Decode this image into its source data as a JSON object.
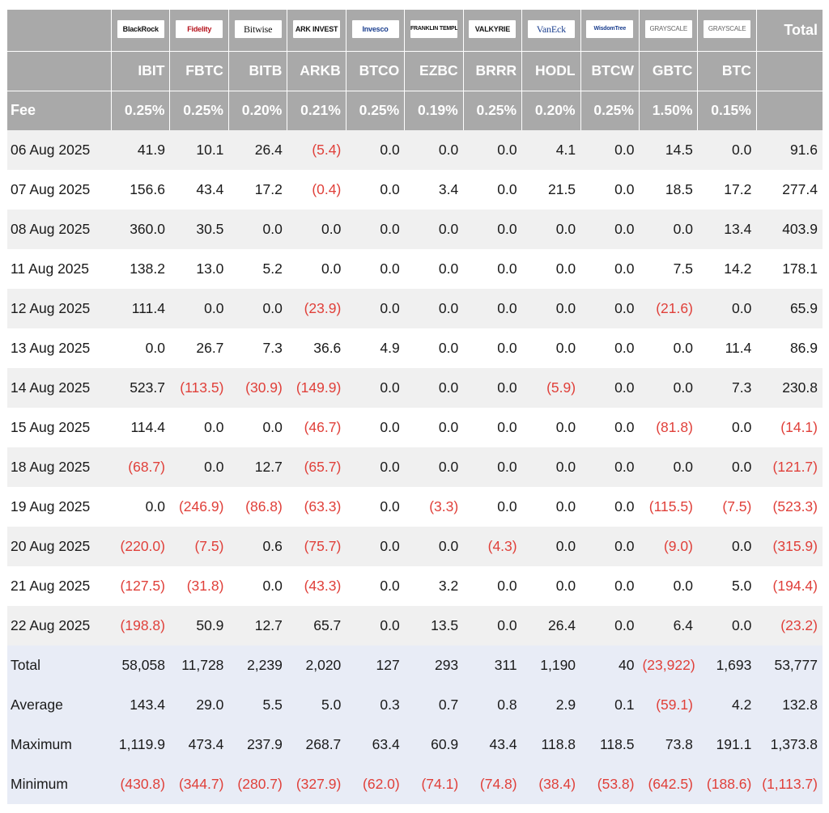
{
  "header": {
    "logos": [
      "BlackRock",
      "Fidelity",
      "Bitwise",
      "ARK INVEST",
      "Invesco",
      "FRANKLIN TEMPLETON",
      "VALKYRIE",
      "VanEck",
      "WisdomTree",
      "GRAYSCALE",
      "GRAYSCALE"
    ],
    "total_label": "Total",
    "tickers": [
      "IBIT",
      "FBTC",
      "BITB",
      "ARKB",
      "BTCO",
      "EZBC",
      "BRRR",
      "HODL",
      "BTCW",
      "GBTC",
      "BTC"
    ],
    "fee_label": "Fee",
    "fees": [
      "0.25%",
      "0.25%",
      "0.20%",
      "0.21%",
      "0.25%",
      "0.19%",
      "0.25%",
      "0.20%",
      "0.25%",
      "1.50%",
      "0.15%"
    ]
  },
  "rows": [
    {
      "date": "06 Aug 2025",
      "values": [
        "41.9",
        "10.1",
        "26.4",
        "(5.4)",
        "0.0",
        "0.0",
        "0.0",
        "4.1",
        "0.0",
        "14.5",
        "0.0",
        "91.6"
      ]
    },
    {
      "date": "07 Aug 2025",
      "values": [
        "156.6",
        "43.4",
        "17.2",
        "(0.4)",
        "0.0",
        "3.4",
        "0.0",
        "21.5",
        "0.0",
        "18.5",
        "17.2",
        "277.4"
      ]
    },
    {
      "date": "08 Aug 2025",
      "values": [
        "360.0",
        "30.5",
        "0.0",
        "0.0",
        "0.0",
        "0.0",
        "0.0",
        "0.0",
        "0.0",
        "0.0",
        "13.4",
        "403.9"
      ]
    },
    {
      "date": "11 Aug 2025",
      "values": [
        "138.2",
        "13.0",
        "5.2",
        "0.0",
        "0.0",
        "0.0",
        "0.0",
        "0.0",
        "0.0",
        "7.5",
        "14.2",
        "178.1"
      ]
    },
    {
      "date": "12 Aug 2025",
      "values": [
        "111.4",
        "0.0",
        "0.0",
        "(23.9)",
        "0.0",
        "0.0",
        "0.0",
        "0.0",
        "0.0",
        "(21.6)",
        "0.0",
        "65.9"
      ]
    },
    {
      "date": "13 Aug 2025",
      "values": [
        "0.0",
        "26.7",
        "7.3",
        "36.6",
        "4.9",
        "0.0",
        "0.0",
        "0.0",
        "0.0",
        "0.0",
        "11.4",
        "86.9"
      ]
    },
    {
      "date": "14 Aug 2025",
      "values": [
        "523.7",
        "(113.5)",
        "(30.9)",
        "(149.9)",
        "0.0",
        "0.0",
        "0.0",
        "(5.9)",
        "0.0",
        "0.0",
        "7.3",
        "230.8"
      ]
    },
    {
      "date": "15 Aug 2025",
      "values": [
        "114.4",
        "0.0",
        "0.0",
        "(46.7)",
        "0.0",
        "0.0",
        "0.0",
        "0.0",
        "0.0",
        "(81.8)",
        "0.0",
        "(14.1)"
      ]
    },
    {
      "date": "18 Aug 2025",
      "values": [
        "(68.7)",
        "0.0",
        "12.7",
        "(65.7)",
        "0.0",
        "0.0",
        "0.0",
        "0.0",
        "0.0",
        "0.0",
        "0.0",
        "(121.7)"
      ]
    },
    {
      "date": "19 Aug 2025",
      "values": [
        "0.0",
        "(246.9)",
        "(86.8)",
        "(63.3)",
        "0.0",
        "(3.3)",
        "0.0",
        "0.0",
        "0.0",
        "(115.5)",
        "(7.5)",
        "(523.3)"
      ]
    },
    {
      "date": "20 Aug 2025",
      "values": [
        "(220.0)",
        "(7.5)",
        "0.6",
        "(75.7)",
        "0.0",
        "0.0",
        "(4.3)",
        "0.0",
        "0.0",
        "(9.0)",
        "0.0",
        "(315.9)"
      ]
    },
    {
      "date": "21 Aug 2025",
      "values": [
        "(127.5)",
        "(31.8)",
        "0.0",
        "(43.3)",
        "0.0",
        "3.2",
        "0.0",
        "0.0",
        "0.0",
        "0.0",
        "5.0",
        "(194.4)"
      ]
    },
    {
      "date": "22 Aug 2025",
      "values": [
        "(198.8)",
        "50.9",
        "12.7",
        "65.7",
        "0.0",
        "13.5",
        "0.0",
        "26.4",
        "0.0",
        "6.4",
        "0.0",
        "(23.2)"
      ]
    }
  ],
  "summary": [
    {
      "label": "Total",
      "values": [
        "58,058",
        "11,728",
        "2,239",
        "2,020",
        "127",
        "293",
        "311",
        "1,190",
        "40",
        "(23,922)",
        "1,693",
        "53,777"
      ]
    },
    {
      "label": "Average",
      "values": [
        "143.4",
        "29.0",
        "5.5",
        "5.0",
        "0.3",
        "0.7",
        "0.8",
        "2.9",
        "0.1",
        "(59.1)",
        "4.2",
        "132.8"
      ]
    },
    {
      "label": "Maximum",
      "values": [
        "1,119.9",
        "473.4",
        "237.9",
        "268.7",
        "63.4",
        "60.9",
        "43.4",
        "118.8",
        "118.5",
        "73.8",
        "191.1",
        "1,373.8"
      ]
    },
    {
      "label": "Minimum",
      "values": [
        "(430.8)",
        "(344.7)",
        "(280.7)",
        "(327.9)",
        "(62.0)",
        "(74.1)",
        "(74.8)",
        "(38.4)",
        "(53.8)",
        "(642.5)",
        "(188.6)",
        "(1,113.7)"
      ]
    }
  ],
  "colors": {
    "header_bg": "#a9a9a9",
    "negative": "#e0403a",
    "alt_row": "#f0f0f0",
    "summary_bg": "#e8ecf6"
  }
}
